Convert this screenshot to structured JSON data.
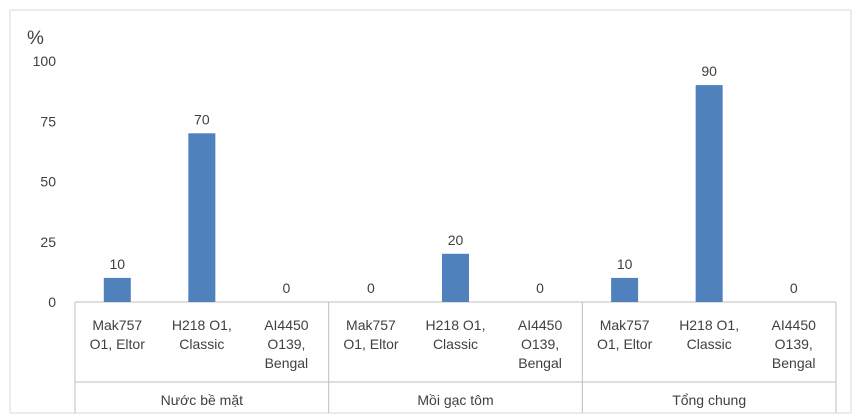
{
  "chart_data": {
    "type": "bar",
    "ylabel": "%",
    "ylim": [
      0,
      100
    ],
    "yticks": [
      0,
      25,
      50,
      75,
      100
    ],
    "grid": false,
    "bar_color": "#4f81bd",
    "groups": [
      {
        "label": "Nước bề mặt",
        "categories": [
          {
            "label_lines": [
              "Mak757",
              "O1, Eltor"
            ],
            "value": 10
          },
          {
            "label_lines": [
              "H218 O1,",
              "Classic"
            ],
            "value": 70
          },
          {
            "label_lines": [
              "AI4450",
              "O139,",
              "Bengal"
            ],
            "value": 0
          }
        ]
      },
      {
        "label": "Mồi gạc tôm",
        "categories": [
          {
            "label_lines": [
              "Mak757",
              "O1, Eltor"
            ],
            "value": 0
          },
          {
            "label_lines": [
              "H218 O1,",
              "Classic"
            ],
            "value": 20
          },
          {
            "label_lines": [
              "AI4450",
              "O139,",
              "Bengal"
            ],
            "value": 0
          }
        ]
      },
      {
        "label": "Tổng chung",
        "categories": [
          {
            "label_lines": [
              "Mak757",
              "O1, Eltor"
            ],
            "value": 10
          },
          {
            "label_lines": [
              "H218 O1,",
              "Classic"
            ],
            "value": 90
          },
          {
            "label_lines": [
              "AI4450",
              "O139,",
              "Bengal"
            ],
            "value": 0
          }
        ]
      }
    ]
  }
}
